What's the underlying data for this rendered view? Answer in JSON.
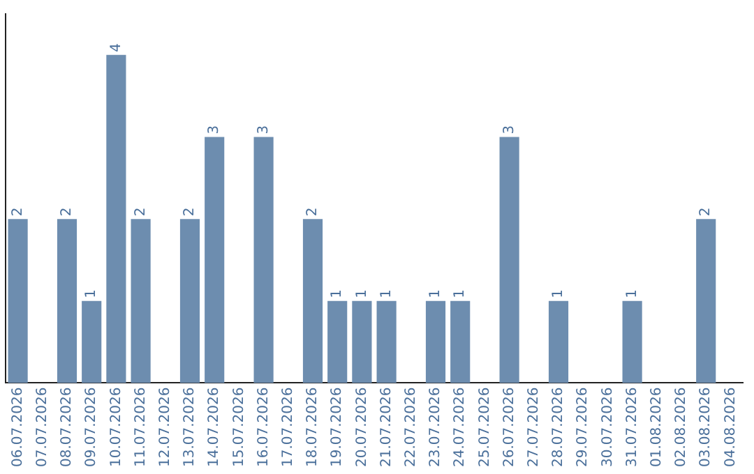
{
  "chart_data": {
    "type": "bar",
    "categories": [
      "06.07.2026",
      "07.07.2026",
      "08.07.2026",
      "09.07.2026",
      "10.07.2026",
      "11.07.2026",
      "12.07.2026",
      "13.07.2026",
      "14.07.2026",
      "15.07.2026",
      "16.07.2026",
      "17.07.2026",
      "18.07.2026",
      "19.07.2026",
      "20.07.2026",
      "21.07.2026",
      "22.07.2026",
      "23.07.2026",
      "24.07.2026",
      "25.07.2026",
      "26.07.2026",
      "27.07.2026",
      "28.07.2026",
      "29.07.2026",
      "30.07.2026",
      "31.07.2026",
      "01.08.2026",
      "02.08.2026",
      "03.08.2026",
      "04.08.2026"
    ],
    "values": [
      2,
      0,
      2,
      1,
      4,
      2,
      0,
      2,
      3,
      0,
      3,
      0,
      2,
      1,
      1,
      1,
      0,
      1,
      1,
      0,
      3,
      0,
      1,
      0,
      0,
      1,
      0,
      0,
      2,
      0
    ],
    "value_labels": [
      "2",
      null,
      "2",
      "1",
      "4",
      "2",
      null,
      "2",
      "3",
      null,
      "3",
      null,
      "2",
      "1",
      "1",
      "1",
      null,
      "1",
      "1",
      null,
      "3",
      null,
      "1",
      null,
      null,
      "1",
      null,
      null,
      "2",
      null
    ],
    "color": "#6d8daf",
    "grid": false,
    "legend": false,
    "tick_labels": "x"
  }
}
